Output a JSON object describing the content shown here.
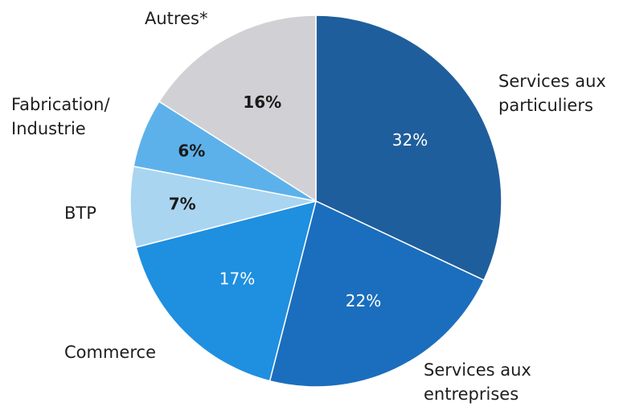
{
  "chart_data": {
    "type": "pie",
    "categories": [
      "Services aux\nparticuliers",
      "Services aux\nentreprises",
      "Commerce",
      "BTP",
      "Fabrication/\nIndustrie",
      "Autres*"
    ],
    "values": [
      32,
      22,
      17,
      7,
      6,
      16
    ],
    "value_labels": [
      "32%",
      "22%",
      "17%",
      "7%",
      "6%",
      "16%"
    ],
    "colors": [
      "#1f5e9c",
      "#1b6ebd",
      "#1f8fe0",
      "#a9d5f1",
      "#5db1ea",
      "#d1d1d5"
    ]
  }
}
